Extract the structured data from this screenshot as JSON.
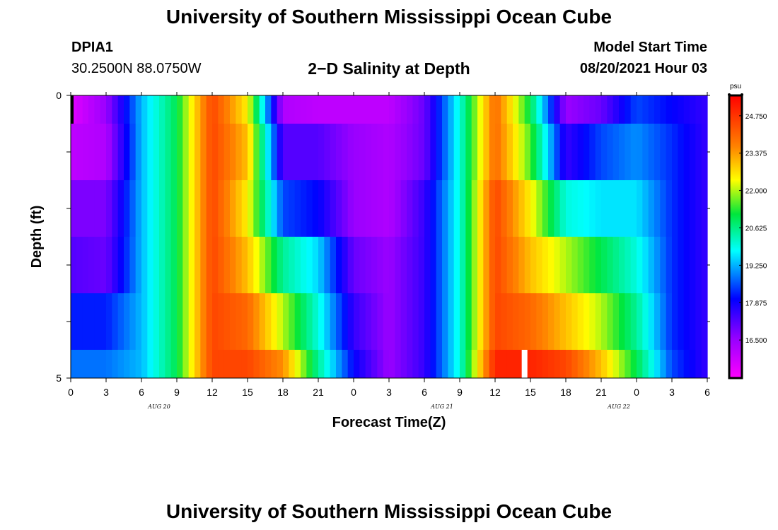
{
  "header": {
    "title": "University of Southern Mississippi Ocean Cube",
    "station_id": "DPIA1",
    "station_coords": "30.2500N  88.0750W",
    "chart_title": "2−D Salinity at Depth",
    "model_start_label": "Model Start Time",
    "model_start_value": "08/20/2021 Hour 03"
  },
  "footer": {
    "title": "University of Southern Mississippi Ocean Cube"
  },
  "chart_data": {
    "type": "heatmap",
    "title": "2−D Salinity at Depth",
    "xlabel": "Forecast Time(Z)",
    "ylabel": "Depth (ft)",
    "x_tick_labels": [
      "0",
      "3",
      "6",
      "9",
      "12",
      "15",
      "18",
      "21",
      "0",
      "3",
      "6",
      "9",
      "12",
      "15",
      "18",
      "21",
      "0",
      "3",
      "6"
    ],
    "x_date_labels": [
      {
        "label": "AUG 20",
        "tick_index": 2.5
      },
      {
        "label": "AUG 21",
        "tick_index": 10.5
      },
      {
        "label": "AUG 22",
        "tick_index": 15.5
      }
    ],
    "y_range": [
      0,
      5
    ],
    "y_tick_labels": [
      "0",
      "5"
    ],
    "colorbar": {
      "unit": "psu",
      "ticks": [
        "24.750",
        "23.375",
        "22.000",
        "20.625",
        "19.250",
        "17.875",
        "16.500"
      ],
      "min": 15.1,
      "max": 25.5
    },
    "hours": [
      0,
      3,
      6,
      9,
      12,
      15,
      18,
      21,
      24,
      27,
      30,
      33,
      36,
      39,
      42,
      45,
      48,
      51,
      54
    ],
    "layers": [
      {
        "depth_range": [
          0,
          0.5
        ],
        "values": [
          15.5,
          16.5,
          19.3,
          21.0,
          24.5,
          22.5,
          16.2,
          16.0,
          16.0,
          16.0,
          17.0,
          20.0,
          24.0,
          21.0,
          16.5,
          17.0,
          18.5,
          18.0,
          17.5
        ]
      },
      {
        "depth_range": [
          0.5,
          1.5
        ],
        "values": [
          16.0,
          16.2,
          19.3,
          21.0,
          24.5,
          23.0,
          17.2,
          17.2,
          16.5,
          16.2,
          17.0,
          20.0,
          24.0,
          21.5,
          17.5,
          18.5,
          19.0,
          18.3,
          17.5
        ]
      },
      {
        "depth_range": [
          1.5,
          2.5
        ],
        "values": [
          16.8,
          16.8,
          19.3,
          21.0,
          24.5,
          22.5,
          18.5,
          18.0,
          16.5,
          16.2,
          17.5,
          20.0,
          24.5,
          22.5,
          20.0,
          19.6,
          19.6,
          18.3,
          17.5
        ]
      },
      {
        "depth_range": [
          2.5,
          3.5
        ],
        "values": [
          17.2,
          17.0,
          19.3,
          21.0,
          24.5,
          23.0,
          20.5,
          19.5,
          17.0,
          16.5,
          17.5,
          20.0,
          24.5,
          23.0,
          22.0,
          21.0,
          20.0,
          18.3,
          17.5
        ]
      },
      {
        "depth_range": [
          3.5,
          4.5
        ],
        "values": [
          18.2,
          18.2,
          19.3,
          21.0,
          24.5,
          24.0,
          22.0,
          20.0,
          17.5,
          16.5,
          17.5,
          20.0,
          24.5,
          24.0,
          23.0,
          22.0,
          20.5,
          18.3,
          17.5
        ]
      },
      {
        "depth_range": [
          4.5,
          5.0
        ],
        "values": [
          18.8,
          18.8,
          19.3,
          21.0,
          24.5,
          24.5,
          23.5,
          20.5,
          18.0,
          16.5,
          17.5,
          20.0,
          25.0,
          25.0,
          24.5,
          23.0,
          21.0,
          18.5,
          17.5
        ]
      }
    ],
    "missing_data": [
      {
        "hour": 38.5,
        "depth_range": [
          4.5,
          5.0
        ]
      }
    ]
  }
}
